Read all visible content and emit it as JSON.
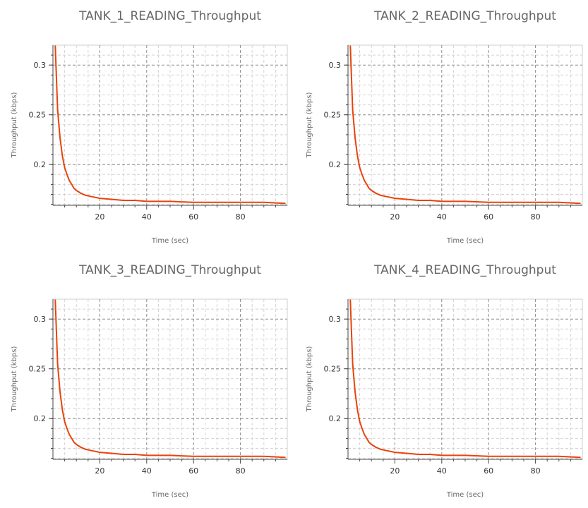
{
  "chart_data": [
    {
      "type": "line",
      "title": "TANK_1_READING_Throughput",
      "xlabel": "Time (sec)",
      "ylabel": "Throughput (kbps)",
      "xlim": [
        0,
        100
      ],
      "ylim": [
        0.159,
        0.32
      ],
      "xticks": [
        20,
        40,
        60,
        80
      ],
      "xtick_labels": [
        "20",
        "40",
        "60",
        "80"
      ],
      "yticks": [
        0.2,
        0.25,
        0.3
      ],
      "ytick_labels": [
        "0.2",
        "0.25",
        "0.3"
      ],
      "grid": true,
      "series": [
        {
          "name": "TANK_1_READING_Throughput",
          "color": "#e8430a",
          "x": [
            1,
            2,
            3,
            4,
            5,
            6,
            7,
            8,
            9,
            10,
            12,
            14,
            16,
            18,
            20,
            25,
            30,
            35,
            40,
            50,
            60,
            70,
            80,
            90,
            99
          ],
          "y": [
            0.319,
            0.255,
            0.227,
            0.209,
            0.197,
            0.19,
            0.184,
            0.18,
            0.176,
            0.174,
            0.171,
            0.169,
            0.168,
            0.167,
            0.166,
            0.165,
            0.164,
            0.164,
            0.163,
            0.163,
            0.162,
            0.162,
            0.162,
            0.162,
            0.161
          ]
        }
      ]
    },
    {
      "type": "line",
      "title": "TANK_2_READING_Throughput",
      "xlabel": "Time (sec)",
      "ylabel": "Throughput (kbps)",
      "xlim": [
        0,
        100
      ],
      "ylim": [
        0.159,
        0.32
      ],
      "xticks": [
        20,
        40,
        60,
        80
      ],
      "xtick_labels": [
        "20",
        "40",
        "60",
        "80"
      ],
      "yticks": [
        0.2,
        0.25,
        0.3
      ],
      "ytick_labels": [
        "0.2",
        "0.25",
        "0.3"
      ],
      "grid": true,
      "series": [
        {
          "name": "TANK_2_READING_Throughput",
          "color": "#e8430a",
          "x": [
            1,
            2,
            3,
            4,
            5,
            6,
            7,
            8,
            9,
            10,
            12,
            14,
            16,
            18,
            20,
            25,
            30,
            35,
            40,
            50,
            60,
            70,
            80,
            90,
            99
          ],
          "y": [
            0.319,
            0.255,
            0.227,
            0.209,
            0.197,
            0.19,
            0.184,
            0.18,
            0.176,
            0.174,
            0.171,
            0.169,
            0.168,
            0.167,
            0.166,
            0.165,
            0.164,
            0.164,
            0.163,
            0.163,
            0.162,
            0.162,
            0.162,
            0.162,
            0.161
          ]
        }
      ]
    },
    {
      "type": "line",
      "title": "TANK_3_READING_Throughput",
      "xlabel": "Time (sec)",
      "ylabel": "Throughput (kbps)",
      "xlim": [
        0,
        100
      ],
      "ylim": [
        0.159,
        0.32
      ],
      "xticks": [
        20,
        40,
        60,
        80
      ],
      "xtick_labels": [
        "20",
        "40",
        "60",
        "80"
      ],
      "yticks": [
        0.2,
        0.25,
        0.3
      ],
      "ytick_labels": [
        "0.2",
        "0.25",
        "0.3"
      ],
      "grid": true,
      "series": [
        {
          "name": "TANK_3_READING_Throughput",
          "color": "#e8430a",
          "x": [
            1,
            2,
            3,
            4,
            5,
            6,
            7,
            8,
            9,
            10,
            12,
            14,
            16,
            18,
            20,
            25,
            30,
            35,
            40,
            50,
            60,
            70,
            80,
            90,
            99
          ],
          "y": [
            0.319,
            0.255,
            0.227,
            0.209,
            0.197,
            0.19,
            0.184,
            0.18,
            0.176,
            0.174,
            0.171,
            0.169,
            0.168,
            0.167,
            0.166,
            0.165,
            0.164,
            0.164,
            0.163,
            0.163,
            0.162,
            0.162,
            0.162,
            0.162,
            0.161
          ]
        }
      ]
    },
    {
      "type": "line",
      "title": "TANK_4_READING_Throughput",
      "xlabel": "Time (sec)",
      "ylabel": "Throughput (kbps)",
      "xlim": [
        0,
        100
      ],
      "ylim": [
        0.159,
        0.32
      ],
      "xticks": [
        20,
        40,
        60,
        80
      ],
      "xtick_labels": [
        "20",
        "40",
        "60",
        "80"
      ],
      "yticks": [
        0.2,
        0.25,
        0.3
      ],
      "ytick_labels": [
        "0.2",
        "0.25",
        "0.3"
      ],
      "grid": true,
      "series": [
        {
          "name": "TANK_4_READING_Throughput",
          "color": "#e8430a",
          "x": [
            1,
            2,
            3,
            4,
            5,
            6,
            7,
            8,
            9,
            10,
            12,
            14,
            16,
            18,
            20,
            25,
            30,
            35,
            40,
            50,
            60,
            70,
            80,
            90,
            99
          ],
          "y": [
            0.319,
            0.255,
            0.227,
            0.209,
            0.197,
            0.19,
            0.184,
            0.18,
            0.176,
            0.174,
            0.171,
            0.169,
            0.168,
            0.167,
            0.166,
            0.165,
            0.164,
            0.164,
            0.163,
            0.163,
            0.162,
            0.162,
            0.162,
            0.162,
            0.161
          ]
        }
      ]
    }
  ]
}
